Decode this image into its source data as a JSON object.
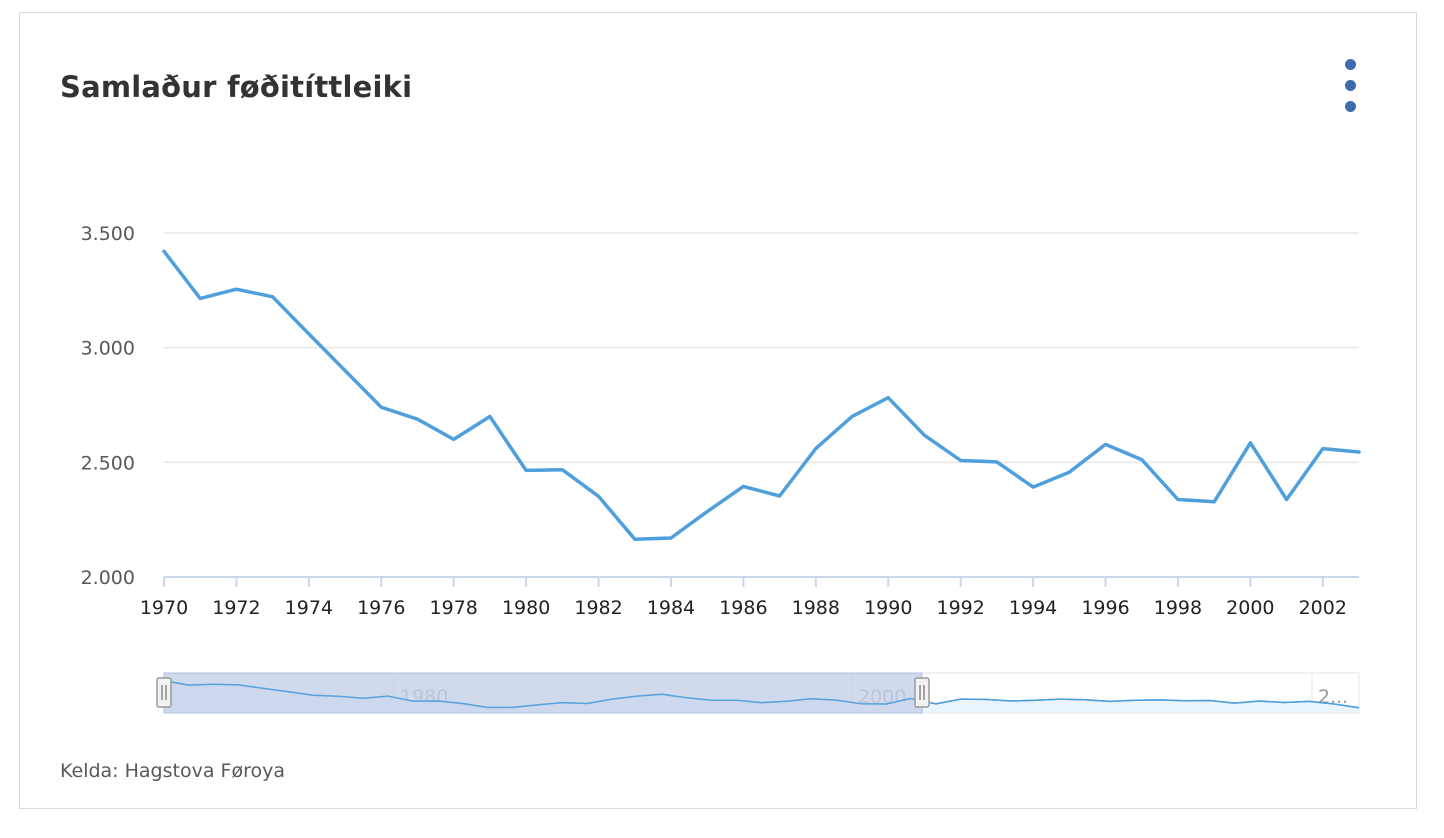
{
  "title": "Samlaður føðitíttleiki",
  "source": "Kelda: Hagstova Føroya",
  "menu_icon": "kebab-menu-icon",
  "colors": {
    "line": "#4f9fdc",
    "grid": "#e6e6e6",
    "axis": "#ccd6eb",
    "navigator_mask": "#c6d0e8",
    "navigator_handle": "#f2f2f2",
    "menu_dots": "#3b6cb0"
  },
  "chart_data": {
    "type": "line",
    "title": "Samlaður føðitíttleiki",
    "xlabel": "",
    "ylabel": "",
    "xlim": [
      1970,
      2003
    ],
    "ylim": [
      2000,
      3500
    ],
    "y_ticks": [
      "2.000",
      "2.500",
      "3.000",
      "3.500"
    ],
    "x_ticks": [
      "1970",
      "1972",
      "1974",
      "1976",
      "1978",
      "1980",
      "1982",
      "1984",
      "1986",
      "1988",
      "1990",
      "1992",
      "1994",
      "1996",
      "1998",
      "2000",
      "2002"
    ],
    "grid": true,
    "series": [
      {
        "x": [
          1970,
          1971,
          1972,
          1973,
          1974,
          1975,
          1976,
          1977,
          1978,
          1979,
          1980,
          1981,
          1982,
          1983,
          1984,
          1985,
          1986,
          1987,
          1988,
          1989,
          1990,
          1991,
          1992,
          1993,
          1994,
          1995,
          1996,
          1997,
          1998,
          1999,
          2000,
          2001,
          2002,
          2003
        ],
        "values": [
          3420,
          3215,
          3255,
          3222,
          3060,
          2900,
          2740,
          2688,
          2600,
          2700,
          2465,
          2468,
          2352,
          2165,
          2170,
          2285,
          2395,
          2353,
          2560,
          2700,
          2782,
          2618,
          2508,
          2502,
          2392,
          2457,
          2578,
          2512,
          2338,
          2328,
          2585,
          2338,
          2560,
          2545
        ]
      }
    ],
    "navigator": {
      "tick_labels": [
        "1980",
        "2000",
        "2..."
      ]
    }
  }
}
